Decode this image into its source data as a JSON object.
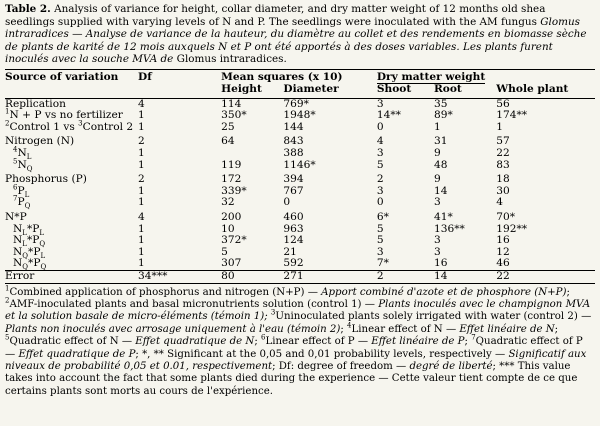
{
  "caption": {
    "label": "Table 2.",
    "text_en": " Analysis of variance for height, collar diameter, and dry matter weight of 12 months old shea seedlings supplied with varying levels of N and P. The seedlings were inoculated with the AM fungus ",
    "species": "Glomus intraradices",
    "sep": " — ",
    "text_fr": "Analyse de variance de la hauteur, du diamètre au collet et des rendements en biomasse sèche de plants de karité de 12 mois auxquels N et P ont été apportés à des doses variables. Les plants furent inoculés avec la souche MVA de ",
    "species_fr": "Glomus intraradices."
  },
  "headers": {
    "source": "Source of variation",
    "df": "Df",
    "mean_squares": "Mean squares (x 10)",
    "dry_matter": "Dry matter weight",
    "height": "Height",
    "diameter": "Diameter",
    "shoot": "Shoot",
    "root": "Root",
    "whole": "Whole plant"
  },
  "rows": [
    {
      "src": "Replication",
      "df": "4",
      "h": "114",
      "d": "769*",
      "s": "3",
      "r": "35",
      "w": "56"
    },
    {
      "sup": "1",
      "src": "N + P vs no fertilizer",
      "df": "1",
      "h": "350*",
      "d": "1948*",
      "s": "14**",
      "r": "89*",
      "w": "174**"
    },
    {
      "sup": "2",
      "src": "Control 1 vs ",
      "sup2": "3",
      "src2": "Control 2",
      "df": "1",
      "h": "25",
      "d": "144",
      "s": "0",
      "r": "1",
      "w": "1"
    },
    {
      "src": "Nitrogen (N)",
      "df": "2",
      "h": "64",
      "d": "843",
      "s": "4",
      "r": "31",
      "w": "57"
    },
    {
      "sup": "4",
      "src": "N",
      "sub": "L",
      "df": "1",
      "h": "",
      "d": "388",
      "s": "3",
      "r": "9",
      "w": "22"
    },
    {
      "sup": "5",
      "src": "N",
      "sub": "Q",
      "df": "1",
      "h": "119",
      "d": "1146*",
      "s": "5",
      "r": "48",
      "w": "83"
    },
    {
      "src": "Phosphorus (P)",
      "df": "2",
      "h": "172",
      "d": "394",
      "s": "2",
      "r": "9",
      "w": "18"
    },
    {
      "sup": "6",
      "src": "P",
      "sub": "L",
      "df": "1",
      "h": "339*",
      "d": "767",
      "s": "3",
      "r": "14",
      "w": "30"
    },
    {
      "sup": "7",
      "src": "P",
      "sub": "Q",
      "df": "1",
      "h": "32",
      "d": "0",
      "s": "0",
      "r": "3",
      "w": "4"
    },
    {
      "src": "N*P",
      "df": "4",
      "h": "200",
      "d": "460",
      "s": "6*",
      "r": "41*",
      "w": "70*"
    },
    {
      "src": "N",
      "sub": "L",
      "src2": "*P",
      "sub2": "L",
      "df": "1",
      "h": "10",
      "d": "963",
      "s": "5",
      "r": "136**",
      "w": "192**"
    },
    {
      "src": "N",
      "sub": "L",
      "src2": "*P",
      "sub2": "Q",
      "df": "1",
      "h": "372*",
      "d": "124",
      "s": "5",
      "r": "3",
      "w": "16"
    },
    {
      "src": "N",
      "sub": "Q",
      "src2": "*P",
      "sub2": "L",
      "df": "1",
      "h": "5",
      "d": "21",
      "s": "3",
      "r": "3",
      "w": "12"
    },
    {
      "src": "N",
      "sub": "Q",
      "src2": "*P",
      "sub2": "Q",
      "df": "1",
      "h": "307",
      "d": "592",
      "s": "7*",
      "r": "16",
      "w": "46"
    },
    {
      "src": "Error",
      "df": "34***",
      "h": "80",
      "d": "271",
      "s": "2",
      "r": "14",
      "w": "22"
    }
  ],
  "footnote": {
    "p1a": "Combined application of phosphorus and nitrogen (N+P)",
    "p1b": " — ",
    "p1c": "Apport combiné d'azote et de phosphore (N+P)",
    "p1d": "; ",
    "p2a": "AMF-inoculated plants and basal micronutrients solution (control 1)",
    "p2b": " — ",
    "p2c": "Plants inoculés avec le champignon MVA et la solution basale de micro-éléments (témoin 1);",
    "p3a": "Uninoculated plants solely irrigated with water (control 2)",
    "p3b": " — ",
    "p3c": "Plants non inoculés avec arrosage uniquement à l'eau (témoin 2)",
    "p3d": "; ",
    "p4a": "Linear effect of N",
    "p4c": "Effet linéaire de N",
    "p5a": "Quadratic effect of N",
    "p5c": "Effet quadratique de N",
    "p6a": "Linear effect of P",
    "p6c": "Effet linéaire de P",
    "p7a": "Quadratic effect of P",
    "p7c": "Effet quadratique de P",
    "p8a": "; *, ** Significant at the 0,05 and 0,01 probability levels, respectively",
    "p8c": "Significatif aux niveaux de probabilité 0,05 et 0.01, respectivement",
    "p9a": "; Df: degree of freedom",
    "p9c": "degré de liberté",
    "p10a": "; *** This value takes into account the fact that some plants died during the experience",
    "p10c": " — Cette valeur tient compte de ce que certains plants sont morts au cours de l'expérience."
  }
}
